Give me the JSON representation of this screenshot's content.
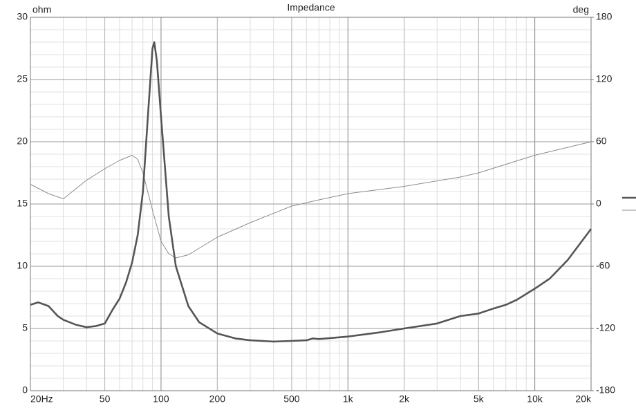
{
  "chart_data": {
    "type": "line",
    "title": "Impedance",
    "y_label": "ohm",
    "y2_label": "deg",
    "xscale": "log",
    "grid": true,
    "xlim": [
      20,
      20000
    ],
    "xticks": [
      {
        "value": 20,
        "label": "20Hz"
      },
      50,
      100,
      200,
      500,
      {
        "value": 1000,
        "label": "1k"
      },
      {
        "value": 2000,
        "label": "2k"
      },
      {
        "value": 5000,
        "label": "5k"
      },
      {
        "value": 10000,
        "label": "10k"
      },
      {
        "value": 20000,
        "label": "20k"
      }
    ],
    "ylim": [
      0,
      30
    ],
    "yticks": [
      0,
      5,
      10,
      15,
      20,
      25,
      30
    ],
    "y2lim": [
      -180,
      180
    ],
    "y2ticks": [
      -180,
      -120,
      -60,
      0,
      60,
      120,
      180
    ],
    "series": [
      {
        "color": "#555555",
        "x": [
          20,
          22,
          25,
          28,
          30,
          35,
          40,
          45,
          50,
          55,
          60,
          65,
          70,
          75,
          80,
          85,
          90,
          92,
          95,
          100,
          110,
          120,
          140,
          160,
          200,
          250,
          300,
          400,
          500,
          600,
          650,
          700,
          1000,
          1500,
          2000,
          3000,
          4000,
          5000,
          6000,
          7000,
          8000,
          10000,
          12000,
          15000,
          20000
        ],
        "values": [
          6.9,
          7.1,
          6.8,
          6.0,
          5.7,
          5.3,
          5.1,
          5.2,
          5.4,
          6.5,
          7.4,
          8.7,
          10.3,
          12.5,
          16,
          22,
          27.5,
          28,
          26.5,
          22,
          14,
          10,
          6.8,
          5.5,
          4.6,
          4.2,
          4.05,
          3.95,
          4.0,
          4.05,
          4.2,
          4.15,
          4.35,
          4.7,
          5.0,
          5.4,
          6.0,
          6.2,
          6.6,
          6.9,
          7.3,
          8.2,
          9.0,
          10.5,
          13
        ]
      },
      {
        "color": "#8c8c8c",
        "axis": "y2",
        "x": [
          20,
          25,
          30,
          40,
          50,
          60,
          70,
          75,
          80,
          90,
          100,
          110,
          120,
          140,
          200,
          300,
          500,
          700,
          1000,
          2000,
          4000,
          5000,
          10000,
          20000
        ],
        "values": [
          19,
          10,
          5,
          23,
          34,
          42,
          47,
          43,
          30,
          -6,
          -36,
          -48,
          -52,
          -49,
          -32,
          -18,
          -2,
          4,
          10,
          17,
          26,
          30,
          47,
          60
        ]
      }
    ]
  }
}
